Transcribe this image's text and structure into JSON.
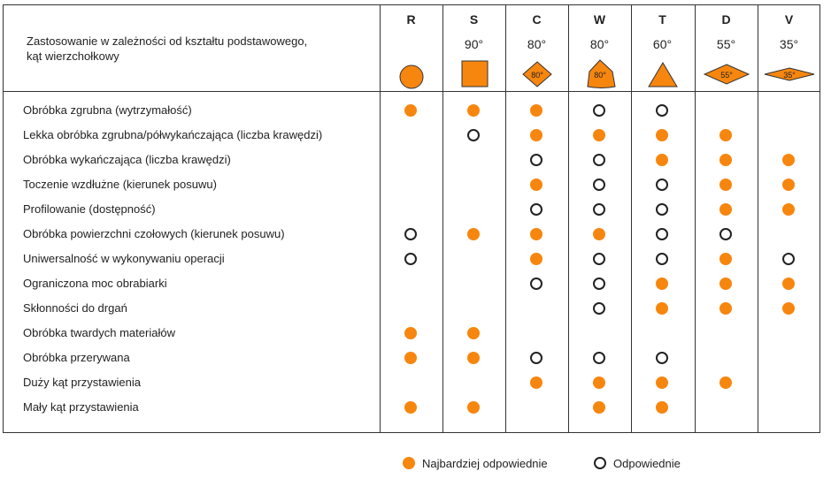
{
  "header_title": [
    "Zastosowanie w zależności od kształtu podstawowego,",
    "kąt wierzchołkowy"
  ],
  "columns": [
    {
      "letter": "R",
      "angle": "",
      "shape": "circle-icon"
    },
    {
      "letter": "S",
      "angle": "90°",
      "shape": "square-icon"
    },
    {
      "letter": "C",
      "angle": "80°",
      "shape": "rhombus-80-icon",
      "shape_label": "80°"
    },
    {
      "letter": "W",
      "angle": "80°",
      "shape": "trigon-icon",
      "shape_label": "80°"
    },
    {
      "letter": "T",
      "angle": "60°",
      "shape": "triangle-icon"
    },
    {
      "letter": "D",
      "angle": "55°",
      "shape": "rhombus-55-icon",
      "shape_label": "55°"
    },
    {
      "letter": "V",
      "angle": "35°",
      "shape": "rhombus-35-icon",
      "shape_label": "35°"
    }
  ],
  "rows": [
    {
      "label": "Obróbka zgrubna (wytrzymałość)",
      "cells": [
        "F",
        "F",
        "F",
        "O",
        "O",
        "",
        ""
      ]
    },
    {
      "label": "Lekka obróbka zgrubna/półwykańczająca (liczba krawędzi)",
      "cells": [
        "",
        "O",
        "F",
        "F",
        "F",
        "F",
        ""
      ]
    },
    {
      "label": "Obróbka wykańczająca (liczba krawędzi)",
      "cells": [
        "",
        "",
        "O",
        "O",
        "F",
        "F",
        "F"
      ]
    },
    {
      "label": "Toczenie wzdłużne (kierunek posuwu)",
      "cells": [
        "",
        "",
        "F",
        "O",
        "O",
        "F",
        "F"
      ]
    },
    {
      "label": "Profilowanie (dostępność)",
      "cells": [
        "",
        "",
        "O",
        "O",
        "O",
        "F",
        "F"
      ]
    },
    {
      "label": "Obróbka powierzchni czołowych (kierunek posuwu)",
      "cells": [
        "O",
        "F",
        "F",
        "F",
        "O",
        "O",
        ""
      ]
    },
    {
      "label": "Uniwersalność w wykonywaniu operacji",
      "cells": [
        "O",
        "",
        "F",
        "O",
        "O",
        "F",
        "O"
      ]
    },
    {
      "label": "Ograniczona moc obrabiarki",
      "cells": [
        "",
        "",
        "O",
        "O",
        "F",
        "F",
        "F"
      ]
    },
    {
      "label": "Skłonności do drgań",
      "cells": [
        "",
        "",
        "",
        "O",
        "F",
        "F",
        "F"
      ]
    },
    {
      "label": "Obróbka twardych materiałów",
      "cells": [
        "F",
        "F",
        "",
        "",
        "",
        "",
        ""
      ]
    },
    {
      "label": "Obróbka przerywana",
      "cells": [
        "F",
        "F",
        "O",
        "O",
        "O",
        "",
        ""
      ]
    },
    {
      "label": "Duży kąt przystawienia",
      "cells": [
        "",
        "",
        "F",
        "F",
        "F",
        "F",
        ""
      ]
    },
    {
      "label": "Mały kąt przystawienia",
      "cells": [
        "F",
        "F",
        "",
        "F",
        "F",
        "",
        ""
      ]
    }
  ],
  "legend": {
    "filled": "Najbardziej odpowiednie",
    "open": "Odpowiednie"
  },
  "colors": {
    "accent": "#f7860f",
    "line": "#333333"
  }
}
